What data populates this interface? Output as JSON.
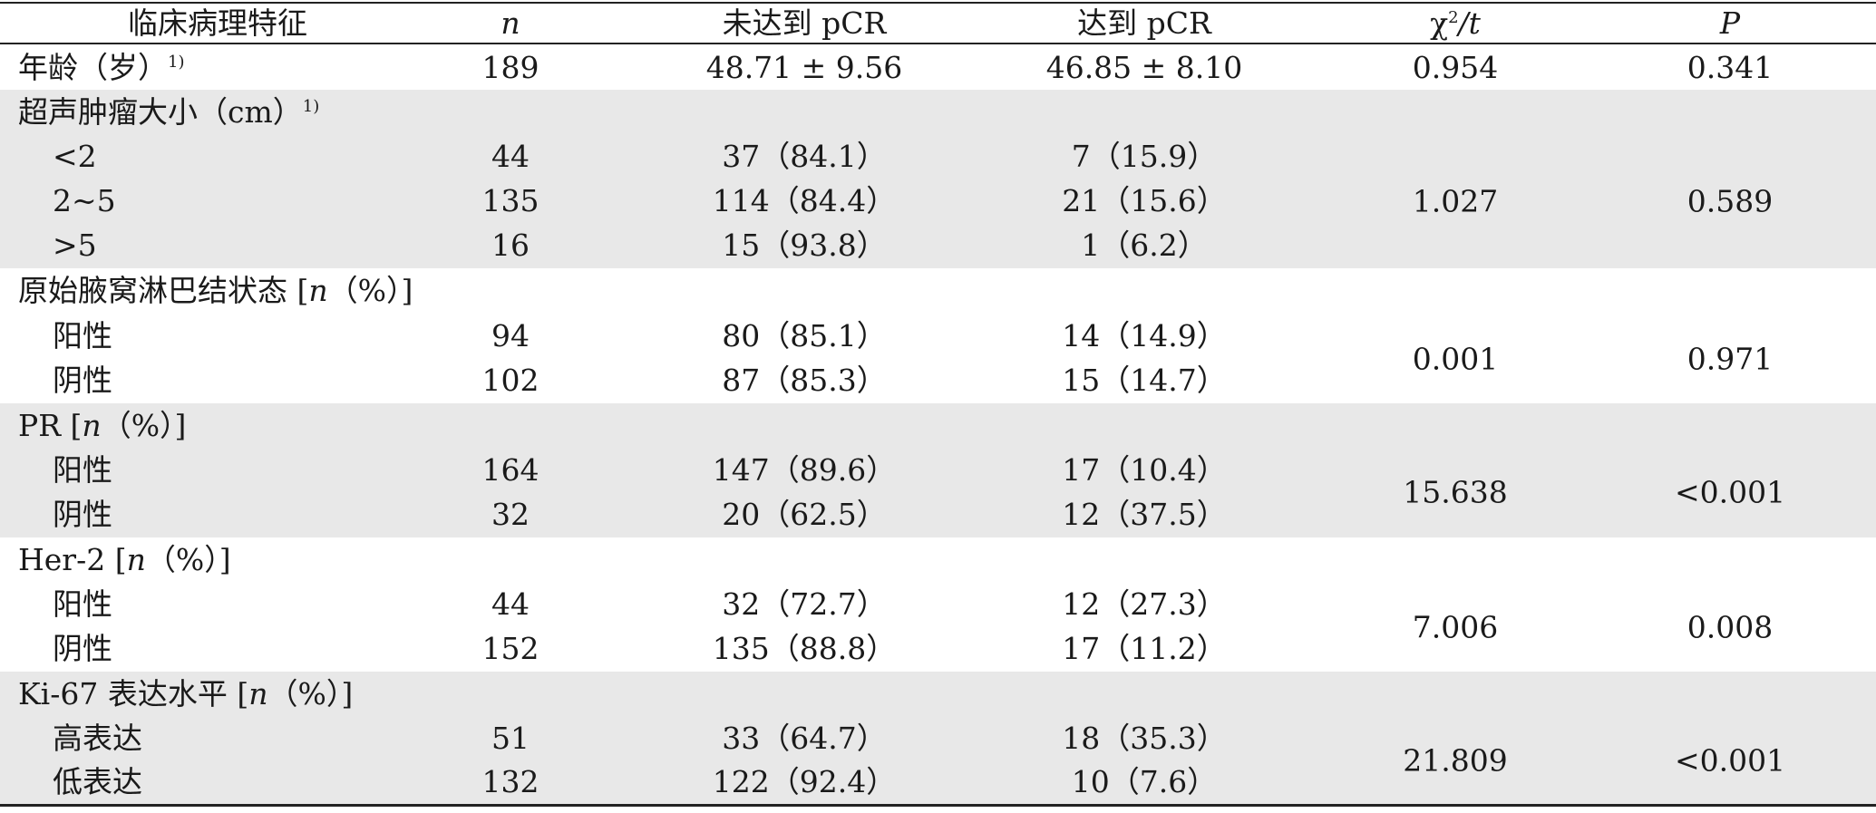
{
  "headers": {
    "feature": "临床病理特征",
    "n": "n",
    "not_pcr": "未达到 pCR",
    "pcr": "达到 pCR",
    "chi_prefix": "χ",
    "chi_sup": "2",
    "chi_suffix": "/t",
    "p": "P"
  },
  "rows": {
    "age": {
      "label": "年龄（岁）",
      "sup": "1)",
      "n": "189",
      "not_pcr": "48.71 ± 9.56",
      "pcr": "46.85 ± 8.10",
      "stat": "0.954",
      "p": "0.341"
    },
    "tumor": {
      "label": "超声肿瘤大小（cm）",
      "sup": "1)",
      "stat": "1.027",
      "p": "0.589",
      "items": [
        {
          "label": "<2",
          "n": "44",
          "not_pcr": "37（84.1）",
          "pcr": "7（15.9）"
        },
        {
          "label": "2~5",
          "n": "135",
          "not_pcr": "114（84.4）",
          "pcr": "21（15.6）"
        },
        {
          "label": ">5",
          "n": "16",
          "not_pcr": "15（93.8）",
          "pcr": "1（6.2）"
        }
      ]
    },
    "axilla": {
      "label_pre": "原始腋窝淋巴结状态 [",
      "label_n": "n",
      "label_post": "（%）]",
      "stat": "0.001",
      "p": "0.971",
      "items": [
        {
          "label": "阳性",
          "n": "94",
          "not_pcr": "80（85.1）",
          "pcr": "14（14.9）"
        },
        {
          "label": "阴性",
          "n": "102",
          "not_pcr": "87（85.3）",
          "pcr": "15（14.7）"
        }
      ]
    },
    "pr": {
      "label_pre": "PR [",
      "label_n": "n",
      "label_post": "（%）]",
      "stat": "15.638",
      "p": "<0.001",
      "items": [
        {
          "label": "阳性",
          "n": "164",
          "not_pcr": "147（89.6）",
          "pcr": "17（10.4）"
        },
        {
          "label": "阴性",
          "n": "32",
          "not_pcr": "20（62.5）",
          "pcr": "12（37.5）"
        }
      ]
    },
    "her2": {
      "label_pre": "Her-2 [",
      "label_n": "n",
      "label_post": "（%）]",
      "stat": "7.006",
      "p": "0.008",
      "items": [
        {
          "label": "阳性",
          "n": "44",
          "not_pcr": "32（72.7）",
          "pcr": "12（27.3）"
        },
        {
          "label": "阴性",
          "n": "152",
          "not_pcr": "135（88.8）",
          "pcr": "17（11.2）"
        }
      ]
    },
    "ki67": {
      "label_pre": "Ki-67 表达水平 [",
      "label_n": "n",
      "label_post": "（%）]",
      "stat": "21.809",
      "p": "<0.001",
      "items": [
        {
          "label": "高表达",
          "n": "51",
          "not_pcr": "33（64.7）",
          "pcr": "18（35.3）"
        },
        {
          "label": "低表达",
          "n": "132",
          "not_pcr": "122（92.4）",
          "pcr": "10（7.6）"
        }
      ]
    }
  }
}
